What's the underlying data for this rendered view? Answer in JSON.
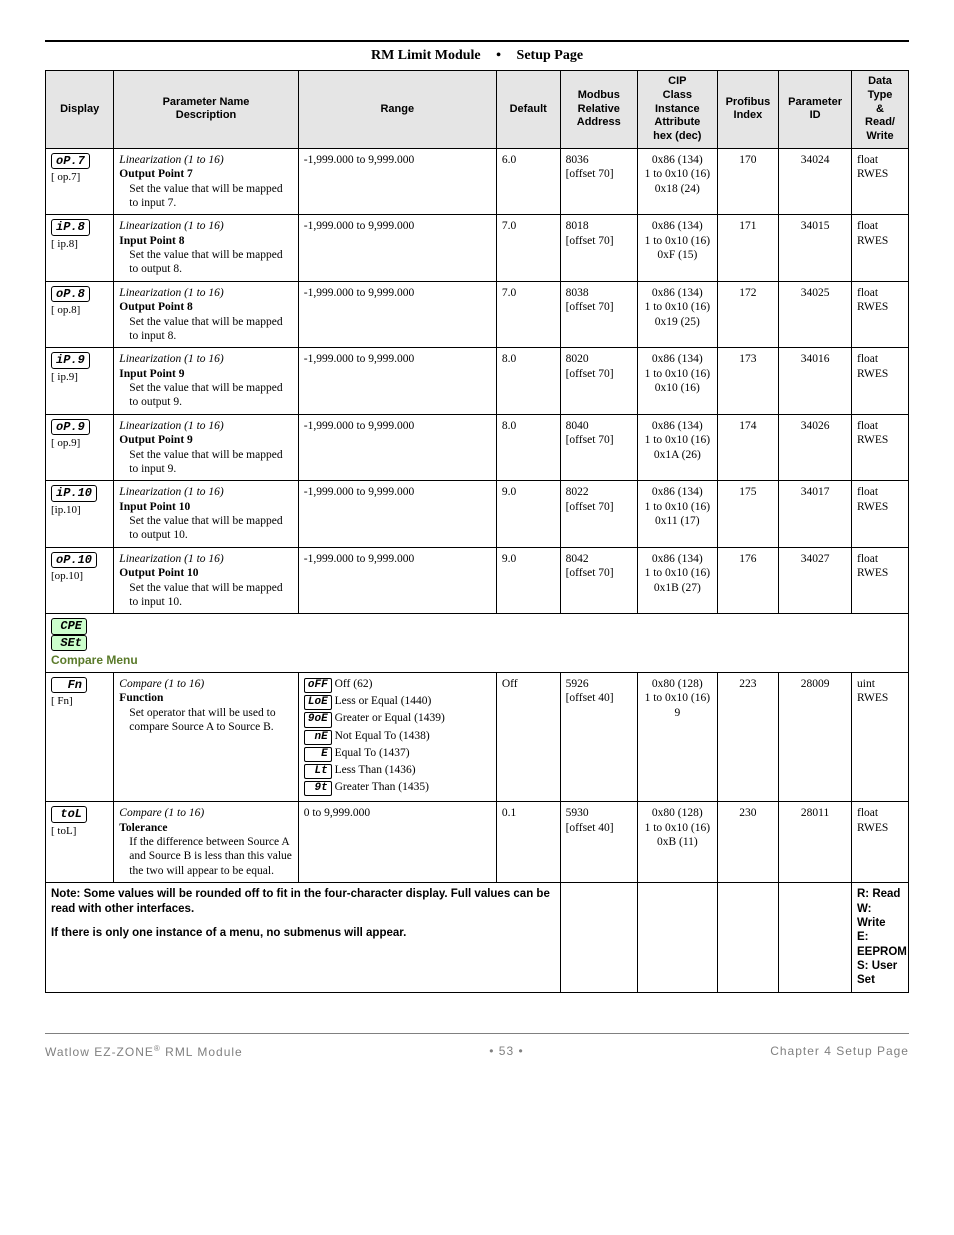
{
  "header": {
    "left": "RM Limit Module",
    "right": "Setup Page"
  },
  "columns": [
    "Display",
    "Parameter Name\nDescription",
    "Range",
    "Default",
    "Modbus Relative Address",
    "CIP Class Instance Attribute hex (dec)",
    "Profibus Index",
    "Parameter ID",
    "Data Type & Read/Write"
  ],
  "rows": [
    {
      "seg": "oP.7",
      "sub": "[ op.7]",
      "group": "Linearization (1 to 16)",
      "name": "Output Point 7",
      "desc": "Set the value that will be mapped to input 7.",
      "range": "-1,999.000 to 9,999.000",
      "default": "6.0",
      "modbus": "8036\n[offset 70]",
      "cip": "0x86 (134)\n1 to 0x10 (16)\n0x18 (24)",
      "profibus": "170",
      "pid": "34024",
      "dtype": "float\nRWES"
    },
    {
      "seg": "iP.8",
      "sub": "[ ip.8]",
      "group": "Linearization (1 to 16)",
      "name": "Input Point 8",
      "desc": "Set the value that will be mapped to output 8.",
      "range": "-1,999.000 to 9,999.000",
      "default": "7.0",
      "modbus": "8018\n[offset 70]",
      "cip": "0x86 (134)\n1 to 0x10 (16)\n0xF (15)",
      "profibus": "171",
      "pid": "34015",
      "dtype": "float\nRWES"
    },
    {
      "seg": "oP.8",
      "sub": "[ op.8]",
      "group": "Linearization (1 to 16)",
      "name": "Output Point 8",
      "desc": "Set the value that will be mapped to input 8.",
      "range": "-1,999.000 to 9,999.000",
      "default": "7.0",
      "modbus": "8038\n[offset 70]",
      "cip": "0x86 (134)\n1 to 0x10 (16)\n0x19 (25)",
      "profibus": "172",
      "pid": "34025",
      "dtype": "float\nRWES"
    },
    {
      "seg": "iP.9",
      "sub": "[ ip.9]",
      "group": "Linearization (1 to 16)",
      "name": "Input Point 9",
      "desc": "Set the value that will be mapped to output 9.",
      "range": "-1,999.000 to 9,999.000",
      "default": "8.0",
      "modbus": "8020\n[offset 70]",
      "cip": "0x86 (134)\n1 to 0x10 (16)\n0x10 (16)",
      "profibus": "173",
      "pid": "34016",
      "dtype": "float\nRWES"
    },
    {
      "seg": "oP.9",
      "sub": "[ op.9]",
      "group": "Linearization (1 to 16)",
      "name": "Output Point 9",
      "desc": "Set the value that will be mapped to input 9.",
      "range": "-1,999.000 to 9,999.000",
      "default": "8.0",
      "modbus": "8040\n[offset 70]",
      "cip": "0x86 (134)\n1 to 0x10 (16)\n0x1A (26)",
      "profibus": "174",
      "pid": "34026",
      "dtype": "float\nRWES"
    },
    {
      "seg": "iP.10",
      "sub": "[ip.10]",
      "group": "Linearization (1 to 16)",
      "name": "Input Point 10",
      "desc": "Set the value that will be mapped to output 10.",
      "range": "-1,999.000 to 9,999.000",
      "default": "9.0",
      "modbus": "8022\n[offset 70]",
      "cip": "0x86 (134)\n1 to 0x10 (16)\n0x11 (17)",
      "profibus": "175",
      "pid": "34017",
      "dtype": "float\nRWES"
    },
    {
      "seg": "oP.10",
      "sub": "[op.10]",
      "group": "Linearization (1 to 16)",
      "name": "Output Point 10",
      "desc": "Set the value that will be mapped to input 10.",
      "range": "-1,999.000 to 9,999.000",
      "default": "9.0",
      "modbus": "8042\n[offset 70]",
      "cip": "0x86 (134)\n1 to 0x10 (16)\n0x1B (27)",
      "profibus": "176",
      "pid": "34027",
      "dtype": "float\nRWES"
    }
  ],
  "section": {
    "seg1": "CPE",
    "seg2": "SEt",
    "label": "Compare Menu"
  },
  "compare_rows": [
    {
      "seg": "Fn",
      "sub": "[  Fn]",
      "group": "Compare (1 to 16)",
      "name": "Function",
      "desc": "Set operator that will be used to compare Source A to Source B.",
      "range_opts": [
        {
          "seg": "oFF",
          "label": "Off (62)"
        },
        {
          "seg": "LoE",
          "label": "Less or Equal (1440)"
        },
        {
          "seg": "9oE",
          "label": "Greater or Equal (1439)"
        },
        {
          "seg": "nE",
          "label": "Not Equal To (1438)"
        },
        {
          "seg": "E",
          "label": "Equal To (1437)"
        },
        {
          "seg": "Lt",
          "label": "Less Than (1436)"
        },
        {
          "seg": "9t",
          "label": "Greater Than (1435)"
        }
      ],
      "default": "Off",
      "modbus": "5926\n[offset 40]",
      "cip": "0x80 (128)\n1 to 0x10 (16)\n9",
      "profibus": "223",
      "pid": "28009",
      "dtype": "uint\nRWES"
    },
    {
      "seg": "toL",
      "sub": "[ toL]",
      "group": "Compare (1 to 16)",
      "name": "Tolerance",
      "desc": "If the difference between Source A and Source B is less than this value the two will appear to be equal.",
      "range": "0 to 9,999.000",
      "default": "0.1",
      "modbus": "5930\n[offset 40]",
      "cip": "0x80 (128)\n1 to 0x10 (16)\n0xB (11)",
      "profibus": "230",
      "pid": "28011",
      "dtype": "float\nRWES"
    }
  ],
  "note": {
    "line1": "Note: Some values will be rounded off to fit in the four-character display. Full values can be read with other interfaces.",
    "line2": "If there is only one instance of a menu, no submenus will appear."
  },
  "legend": [
    "R: Read",
    "W: Write",
    "E: EEPROM",
    "S: User Set"
  ],
  "footer": {
    "left": "Watlow EZ-ZONE",
    "left_suffix": " RML Module",
    "center": "•  53  •",
    "right": "Chapter 4 Setup Page"
  }
}
